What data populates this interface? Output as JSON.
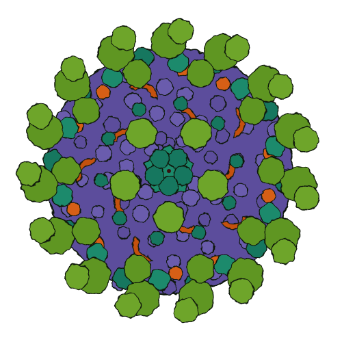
{
  "image": {
    "subject": "virus-capsid-surface-model",
    "background": "#ffffff",
    "colors": {
      "outer_spike": "#5f9622",
      "outer_spike_light": "#6ea529",
      "teal_protein": "#17775e",
      "teal_light": "#1c8a6c",
      "purple_protein": "#5b4e9c",
      "purple_light": "#6a5bad",
      "orange_protein": "#c4510f",
      "orange_light": "#d65e16",
      "outline": "#101808"
    },
    "symmetry": {
      "outer_spike_count": 15,
      "mid_spike_count": 10,
      "inner_spike_count": 5,
      "crescent_count": 10,
      "fold": 5
    }
  }
}
